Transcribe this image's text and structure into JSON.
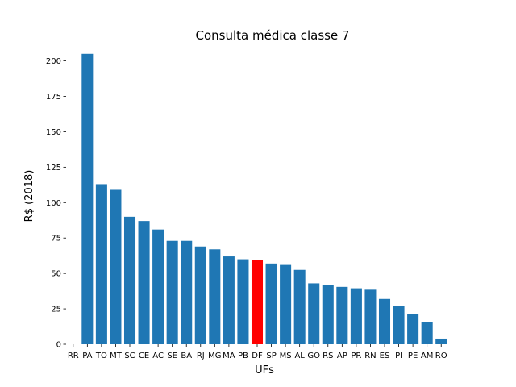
{
  "chart_data": {
    "type": "bar",
    "title": "Consulta médica classe 7",
    "xlabel": "UFs",
    "ylabel": "R$ (2018)",
    "ylim": [
      0,
      210
    ],
    "yticks": [
      0,
      25,
      50,
      75,
      100,
      125,
      150,
      175,
      200
    ],
    "grid": false,
    "categories": [
      "RR",
      "PA",
      "TO",
      "MT",
      "SC",
      "CE",
      "AC",
      "SE",
      "BA",
      "RJ",
      "MG",
      "MA",
      "PB",
      "DF",
      "SP",
      "MS",
      "AL",
      "GO",
      "RS",
      "AP",
      "PR",
      "RN",
      "ES",
      "PI",
      "PE",
      "AM",
      "RO"
    ],
    "values": [
      0,
      205,
      113,
      109,
      90,
      87,
      81,
      73,
      73,
      69,
      67,
      62,
      60,
      59.5,
      57,
      56,
      52.5,
      43,
      42,
      40.5,
      39.5,
      38.5,
      32,
      27,
      21.5,
      15.5,
      4
    ],
    "colors": {
      "default": "#1f77b4",
      "highlight": "#ff0000"
    },
    "highlight_category": "DF"
  }
}
